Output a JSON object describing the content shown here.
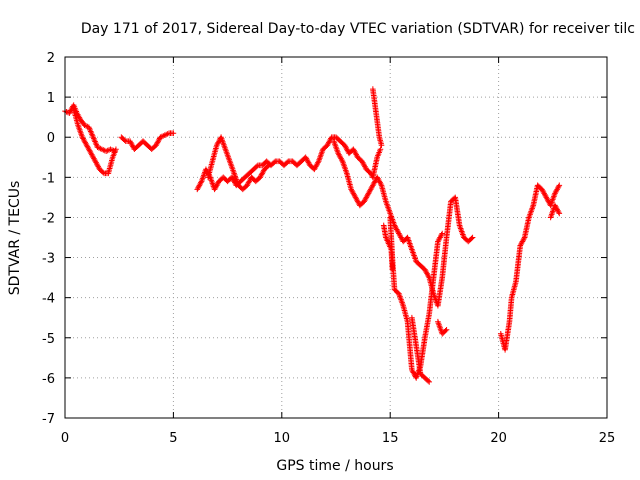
{
  "chart_data": {
    "type": "scatter",
    "title": "Day 171 of 2017, Sidereal Day-to-day VTEC variation (SDTVAR) for receiver tilc",
    "xlabel": "GPS time / hours",
    "ylabel": "SDTVAR / TECUs",
    "xlim": [
      0,
      25
    ],
    "ylim": [
      -7,
      2
    ],
    "xticks": [
      0,
      5,
      10,
      15,
      20,
      25
    ],
    "yticks": [
      -7,
      -6,
      -5,
      -4,
      -3,
      -2,
      -1,
      0,
      1,
      2
    ],
    "grid": true,
    "legend": "none",
    "marker": "plus",
    "color": "#ff0000",
    "series": [
      {
        "trace": [
          [
            0.0,
            0.65
          ],
          [
            0.2,
            0.6
          ],
          [
            0.4,
            0.8
          ],
          [
            0.55,
            0.6
          ],
          [
            0.7,
            0.45
          ],
          [
            0.9,
            0.3
          ],
          [
            1.1,
            0.25
          ],
          [
            1.3,
            0.0
          ],
          [
            1.5,
            -0.25
          ],
          [
            1.7,
            -0.3
          ],
          [
            1.9,
            -0.35
          ],
          [
            2.1,
            -0.3
          ],
          [
            2.3,
            -0.35
          ]
        ]
      },
      {
        "trace": [
          [
            0.4,
            0.7
          ],
          [
            0.6,
            0.3
          ],
          [
            0.8,
            0.0
          ],
          [
            1.0,
            -0.2
          ],
          [
            1.2,
            -0.4
          ],
          [
            1.4,
            -0.6
          ],
          [
            1.6,
            -0.8
          ],
          [
            1.8,
            -0.9
          ],
          [
            2.0,
            -0.9
          ],
          [
            2.2,
            -0.5
          ],
          [
            2.35,
            -0.3
          ]
        ]
      },
      {
        "trace": [
          [
            2.6,
            0.0
          ],
          [
            2.8,
            -0.1
          ],
          [
            3.0,
            -0.1
          ],
          [
            3.2,
            -0.3
          ],
          [
            3.4,
            -0.2
          ],
          [
            3.6,
            -0.1
          ],
          [
            3.8,
            -0.2
          ],
          [
            4.0,
            -0.3
          ],
          [
            4.2,
            -0.2
          ],
          [
            4.4,
            0.0
          ],
          [
            4.6,
            0.05
          ],
          [
            4.8,
            0.1
          ],
          [
            5.0,
            0.1
          ]
        ]
      },
      {
        "trace": [
          [
            6.1,
            -1.3
          ],
          [
            6.3,
            -1.1
          ],
          [
            6.5,
            -0.8
          ],
          [
            6.7,
            -1.0
          ],
          [
            6.9,
            -1.3
          ],
          [
            7.1,
            -1.1
          ],
          [
            7.3,
            -1.0
          ],
          [
            7.5,
            -1.1
          ],
          [
            7.7,
            -1.0
          ],
          [
            7.9,
            -1.2
          ],
          [
            8.1,
            -1.1
          ],
          [
            8.3,
            -1.0
          ],
          [
            8.5,
            -0.9
          ],
          [
            8.7,
            -0.8
          ],
          [
            8.9,
            -0.7
          ],
          [
            9.1,
            -0.7
          ],
          [
            9.3,
            -0.6
          ],
          [
            9.5,
            -0.7
          ],
          [
            9.7,
            -0.6
          ],
          [
            9.9,
            -0.6
          ],
          [
            10.1,
            -0.7
          ],
          [
            10.3,
            -0.6
          ],
          [
            10.5,
            -0.6
          ],
          [
            10.7,
            -0.7
          ],
          [
            10.9,
            -0.6
          ],
          [
            11.1,
            -0.5
          ],
          [
            11.3,
            -0.7
          ],
          [
            11.5,
            -0.8
          ],
          [
            11.7,
            -0.6
          ],
          [
            11.9,
            -0.3
          ],
          [
            12.1,
            -0.2
          ],
          [
            12.3,
            0.0
          ],
          [
            12.5,
            0.0
          ],
          [
            12.7,
            -0.1
          ],
          [
            12.9,
            -0.2
          ],
          [
            13.1,
            -0.4
          ],
          [
            13.3,
            -0.3
          ],
          [
            13.5,
            -0.5
          ],
          [
            13.7,
            -0.6
          ],
          [
            13.9,
            -0.8
          ],
          [
            14.1,
            -0.9
          ],
          [
            14.2,
            -1.0
          ],
          [
            14.4,
            -0.5
          ],
          [
            14.55,
            -0.3
          ]
        ]
      },
      {
        "trace": [
          [
            6.6,
            -1.0
          ],
          [
            6.8,
            -0.6
          ],
          [
            7.0,
            -0.2
          ],
          [
            7.2,
            0.0
          ],
          [
            7.4,
            -0.3
          ],
          [
            7.6,
            -0.6
          ],
          [
            7.8,
            -0.9
          ],
          [
            8.0,
            -1.2
          ],
          [
            8.2,
            -1.3
          ],
          [
            8.4,
            -1.2
          ],
          [
            8.6,
            -1.0
          ],
          [
            8.8,
            -1.1
          ],
          [
            9.0,
            -1.0
          ],
          [
            9.2,
            -0.8
          ],
          [
            9.4,
            -0.7
          ]
        ]
      },
      {
        "trace": [
          [
            12.4,
            -0.1
          ],
          [
            12.6,
            -0.4
          ],
          [
            12.8,
            -0.6
          ],
          [
            13.0,
            -0.9
          ],
          [
            13.2,
            -1.3
          ],
          [
            13.4,
            -1.5
          ],
          [
            13.6,
            -1.7
          ],
          [
            13.8,
            -1.6
          ],
          [
            14.0,
            -1.4
          ],
          [
            14.2,
            -1.2
          ],
          [
            14.4,
            -1.0
          ],
          [
            14.6,
            -1.2
          ],
          [
            14.8,
            -1.6
          ],
          [
            15.0,
            -1.9
          ],
          [
            15.2,
            -2.2
          ],
          [
            15.4,
            -2.4
          ],
          [
            15.6,
            -2.6
          ],
          [
            15.8,
            -2.5
          ],
          [
            16.0,
            -2.8
          ],
          [
            16.2,
            -3.1
          ],
          [
            16.4,
            -3.2
          ],
          [
            16.6,
            -3.3
          ],
          [
            16.8,
            -3.5
          ],
          [
            17.0,
            -3.9
          ],
          [
            17.2,
            -4.2
          ],
          [
            17.4,
            -3.5
          ],
          [
            17.6,
            -2.5
          ],
          [
            17.8,
            -1.6
          ],
          [
            18.0,
            -1.5
          ],
          [
            18.2,
            -2.2
          ],
          [
            18.4,
            -2.5
          ],
          [
            18.6,
            -2.6
          ],
          [
            18.8,
            -2.5
          ]
        ]
      },
      {
        "trace": [
          [
            15.0,
            -2.0
          ],
          [
            15.1,
            -3.0
          ],
          [
            15.2,
            -3.8
          ],
          [
            15.4,
            -3.9
          ],
          [
            15.6,
            -4.2
          ],
          [
            15.8,
            -4.6
          ],
          [
            15.9,
            -5.2
          ],
          [
            16.0,
            -5.8
          ],
          [
            16.2,
            -6.0
          ],
          [
            16.4,
            -5.7
          ],
          [
            16.6,
            -5.0
          ],
          [
            16.8,
            -4.4
          ],
          [
            17.0,
            -3.5
          ],
          [
            17.2,
            -2.6
          ],
          [
            17.4,
            -2.4
          ]
        ]
      },
      {
        "trace": [
          [
            16.0,
            -4.5
          ],
          [
            16.2,
            -5.2
          ],
          [
            16.4,
            -5.9
          ],
          [
            16.6,
            -6.0
          ],
          [
            16.8,
            -6.1
          ]
        ]
      },
      {
        "trace": [
          [
            17.2,
            -4.6
          ],
          [
            17.4,
            -4.9
          ],
          [
            17.6,
            -4.8
          ]
        ]
      },
      {
        "trace": [
          [
            20.1,
            -4.9
          ],
          [
            20.3,
            -5.3
          ],
          [
            20.5,
            -4.6
          ],
          [
            20.6,
            -4.0
          ],
          [
            20.8,
            -3.6
          ],
          [
            21.0,
            -2.7
          ],
          [
            21.2,
            -2.5
          ],
          [
            21.4,
            -2.0
          ],
          [
            21.6,
            -1.7
          ],
          [
            21.8,
            -1.2
          ],
          [
            22.0,
            -1.3
          ],
          [
            22.2,
            -1.5
          ],
          [
            22.4,
            -1.7
          ],
          [
            22.6,
            -1.4
          ],
          [
            22.8,
            -1.2
          ]
        ]
      },
      {
        "trace": [
          [
            22.4,
            -2.0
          ],
          [
            22.6,
            -1.7
          ],
          [
            22.8,
            -1.9
          ]
        ]
      },
      {
        "trace": [
          [
            14.2,
            1.2
          ],
          [
            14.25,
            1.0
          ],
          [
            14.3,
            0.8
          ],
          [
            14.5,
            0.0
          ],
          [
            14.6,
            -0.2
          ]
        ]
      },
      {
        "trace": [
          [
            14.7,
            -2.2
          ],
          [
            14.8,
            -2.5
          ],
          [
            15.05,
            -2.8
          ],
          [
            15.1,
            -3.3
          ]
        ]
      }
    ]
  }
}
